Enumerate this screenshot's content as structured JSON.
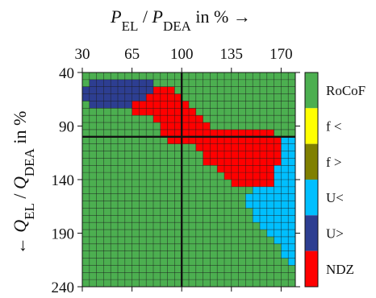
{
  "chart_data": {
    "type": "heatmap",
    "x_axis": {
      "title_parts": [
        {
          "text": "P",
          "role": "italic"
        },
        {
          "text": "EL",
          "role": "sub"
        },
        {
          "text": " / ",
          "role": "normal"
        },
        {
          "text": "P",
          "role": "italic"
        },
        {
          "text": "DEA",
          "role": "sub"
        },
        {
          "text": " in % →",
          "role": "normal"
        }
      ],
      "ticks": [
        "30",
        "65",
        "100",
        "135",
        "170"
      ],
      "tick_values": [
        30,
        65,
        100,
        135,
        170
      ],
      "range": [
        30,
        180
      ],
      "position": "top"
    },
    "y_axis": {
      "title_parts": [
        {
          "text": "← ",
          "role": "normal"
        },
        {
          "text": "Q",
          "role": "italic"
        },
        {
          "text": "EL",
          "role": "sub"
        },
        {
          "text": " / ",
          "role": "normal"
        },
        {
          "text": "Q",
          "role": "italic"
        },
        {
          "text": "DEA",
          "role": "sub"
        },
        {
          "text": " in %",
          "role": "normal"
        }
      ],
      "ticks": [
        "40",
        "90",
        "140",
        "190",
        "240"
      ],
      "tick_values": [
        40,
        90,
        140,
        190,
        240
      ],
      "range": [
        40,
        240
      ],
      "direction": "down"
    },
    "grid": {
      "cols": 30,
      "rows": 30,
      "x_step": 5,
      "y_step": 6.667,
      "cell_lines": true
    },
    "reference_lines": {
      "x": 100,
      "y": 100
    },
    "legend": {
      "placement": "right",
      "entries": [
        {
          "code": "R",
          "label": "RoCoF",
          "color": "#4caf50"
        },
        {
          "code": "F",
          "label": "f <",
          "color": "#ffff00"
        },
        {
          "code": "O",
          "label": "f >",
          "color": "#808000"
        },
        {
          "code": "C",
          "label": "U<",
          "color": "#00bfff"
        },
        {
          "code": "B",
          "label": "U>",
          "color": "#2d3e91"
        },
        {
          "code": "N",
          "label": "NDZ",
          "color": "#ff0000"
        }
      ]
    },
    "cells": [
      "RRRRRRRRRRRRRRRRRRRRRRRRRRRRRR",
      "RBBBBBBBBBRRRRRRRRRRRRRRRRRRRR",
      "BBBBBBBBBBNNNRRRRRRRRRRRRRRRRR",
      "BBBBBBBBBNNNNNRRRRRRRRRRRRRRRR",
      "RBBBBBBNNNNNNNNRRRRRRRRRRRRRRR",
      "RRRRRRRNNNNNNNNNRRRRRRRRRRRRRR",
      "RRRRRRRRRRNNNNNNNRRRRRRRRRRRRR",
      "RRRRRRRRRRRNNNNNNNRRRRRRRRRRRR",
      "RRRRRRRRRRRNNNNNNNNNNNNNNNNRRR",
      "RRRRRRRRRRRRNNNNNNNNNNNNNNNNCC",
      "RRRRRRRRRRRRRRRRNNNNNNNNNNNNCC",
      "RRRRRRRRRRRRRRRRRNNNNNNNNNNNCC",
      "RRRRRRRRRRRRRRRRRNNNNNNNNNNNCC",
      "RRRRRRRRRRRRRRRRRRRNNNNNNNNCCC",
      "RRRRRRRRRRRRRRRRRRRRNNNNNNNCCC",
      "RRRRRRRRRRRRRRRRRRRRRNNNNNNCCC",
      "RRRRRRRRRRRRRRRRRRRRRRRRCCCCCC",
      "RRRRRRRRRRRRRRRRRRRRRRRCCCCCCC",
      "RRRRRRRRRRRRRRRRRRRRRRRCCCCCCC",
      "RRRRRRRRRRRRRRRRRRRRRRRRCCCCCC",
      "RRRRRRRRRRRRRRRRRRRRRRRRCCCCCC",
      "RRRRRRRRRRRRRRRRRRRRRRRRRCCCCC",
      "RRRRRRRRRRRRRRRRRRRRRRRRRRCCCC",
      "RRRRRRRRRRRRRRRRRRRRRRRRRRRCCC",
      "RRRRRRRRRRRRRRRRRRRRRRRRRRRRCC",
      "RRRRRRRRRRRRRRRRRRRRRRRRRRRRCC",
      "RRRRRRRRRRRRRRRRRRRRRRRRRRRRRC",
      "RRRRRRRRRRRRRRRRRRRRRRRRRRRRRR",
      "RRRRRRRRRRRRRRRRRRRRRRRRRRRRRR",
      "RRRRRRRRRRRRRRRRRRRRRRRRRRRRRR"
    ]
  }
}
